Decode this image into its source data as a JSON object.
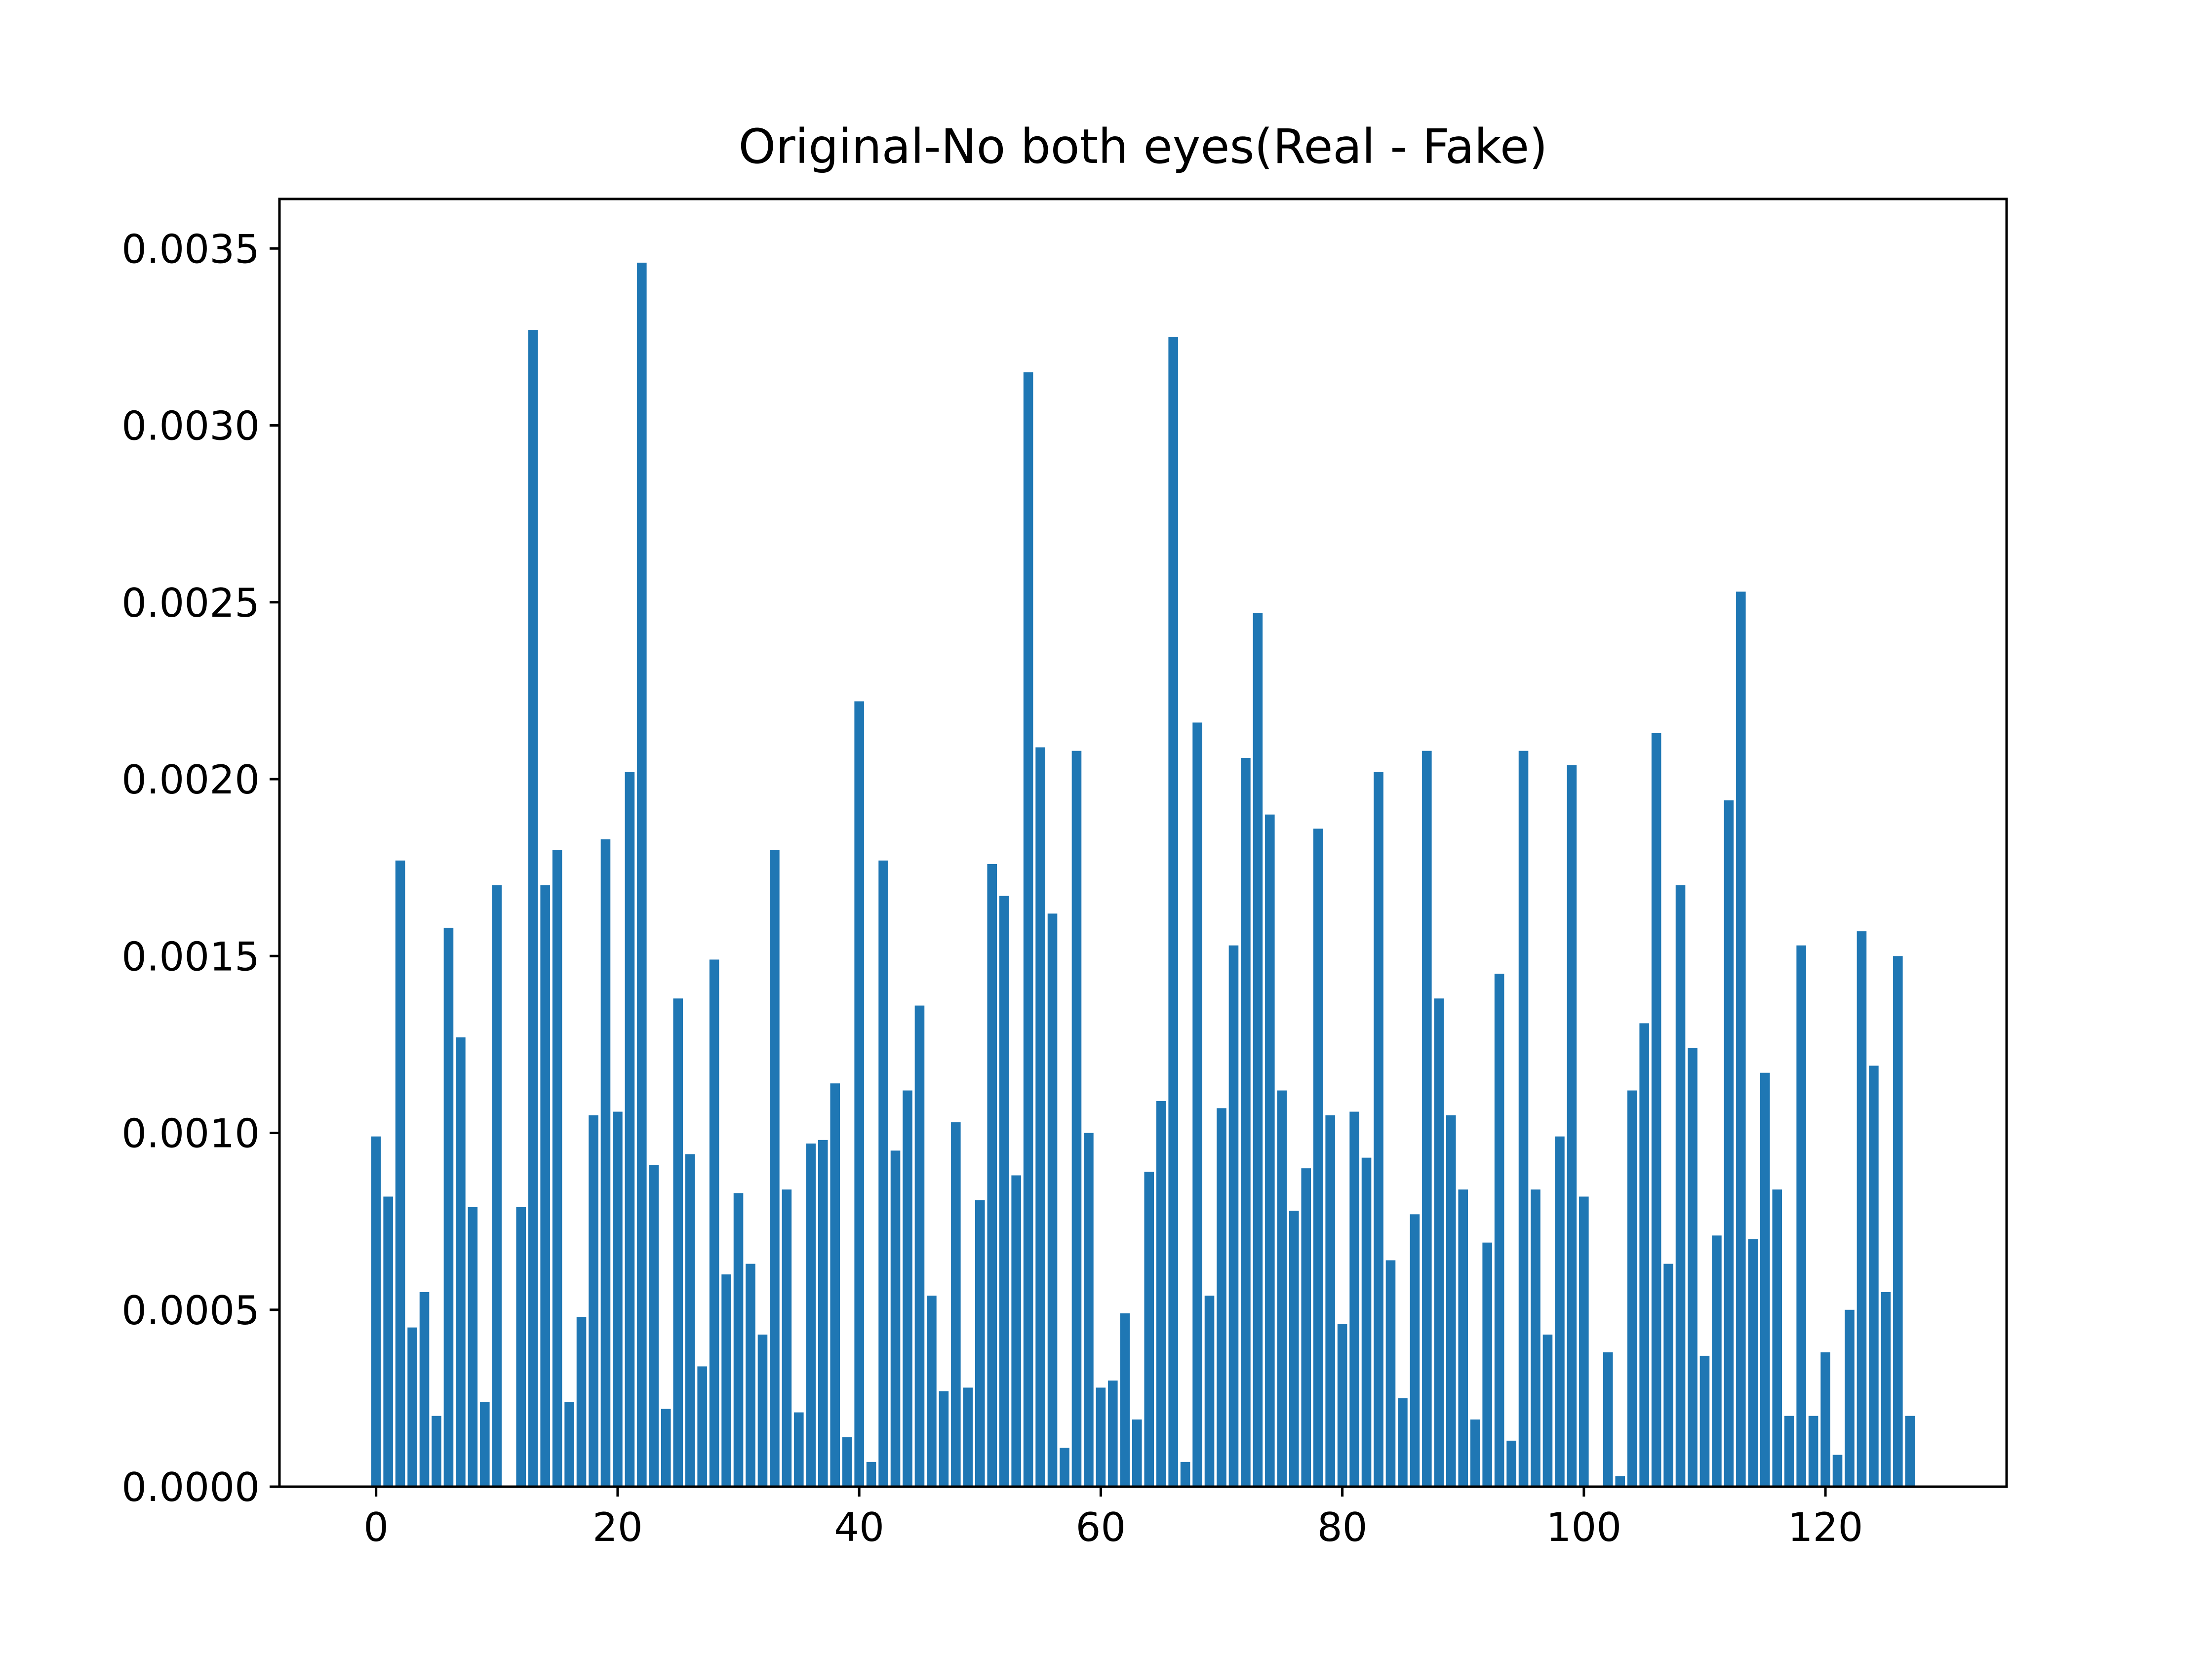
{
  "chart_data": {
    "type": "bar",
    "title": "Original-No both eyes(Real - Fake)",
    "xlabel": "",
    "ylabel": "",
    "x": [
      0,
      1,
      2,
      3,
      4,
      5,
      6,
      7,
      8,
      9,
      10,
      11,
      12,
      13,
      14,
      15,
      16,
      17,
      18,
      19,
      20,
      21,
      22,
      23,
      24,
      25,
      26,
      27,
      28,
      29,
      30,
      31,
      32,
      33,
      34,
      35,
      36,
      37,
      38,
      39,
      40,
      41,
      42,
      43,
      44,
      45,
      46,
      47,
      48,
      49,
      50,
      51,
      52,
      53,
      54,
      55,
      56,
      57,
      58,
      59,
      60,
      61,
      62,
      63,
      64,
      65,
      66,
      67,
      68,
      69,
      70,
      71,
      72,
      73,
      74,
      75,
      76,
      77,
      78,
      79,
      80,
      81,
      82,
      83,
      84,
      85,
      86,
      87,
      88,
      89,
      90,
      91,
      92,
      93,
      94,
      95,
      96,
      97,
      98,
      99,
      100,
      101,
      102,
      103,
      104,
      105,
      106,
      107,
      108,
      109,
      110,
      111,
      112,
      113,
      114,
      115,
      116,
      117,
      118,
      119,
      120,
      121,
      122,
      123,
      124,
      125,
      126,
      127
    ],
    "values": [
      0.00099,
      0.00082,
      0.00177,
      0.00045,
      0.00055,
      0.0002,
      0.00158,
      0.00127,
      0.00079,
      0.00024,
      0.0017,
      0.0,
      0.00079,
      0.00327,
      0.0017,
      0.0018,
      0.00024,
      0.00048,
      0.00105,
      0.00183,
      0.00106,
      0.00202,
      0.00346,
      0.00091,
      0.00022,
      0.00138,
      0.00094,
      0.00034,
      0.00149,
      0.0006,
      0.00083,
      0.00063,
      0.00043,
      0.0018,
      0.00084,
      0.00021,
      0.00097,
      0.00098,
      0.00114,
      0.00014,
      0.00222,
      7e-05,
      0.00177,
      0.00095,
      0.00112,
      0.00136,
      0.00054,
      0.00027,
      0.00103,
      0.00028,
      0.00081,
      0.00176,
      0.00167,
      0.00088,
      0.00315,
      0.00209,
      0.00162,
      0.00011,
      0.00208,
      0.001,
      0.00028,
      0.0003,
      0.00049,
      0.00019,
      0.00089,
      0.00109,
      0.00325,
      7e-05,
      0.00216,
      0.00054,
      0.00107,
      0.00153,
      0.00206,
      0.00247,
      0.0019,
      0.00112,
      0.00078,
      0.0009,
      0.00186,
      0.00105,
      0.00046,
      0.00106,
      0.00093,
      0.00202,
      0.00064,
      0.00025,
      0.00077,
      0.00208,
      0.00138,
      0.00105,
      0.00084,
      0.00019,
      0.00069,
      0.00145,
      0.00013,
      0.00208,
      0.00084,
      0.00043,
      0.00099,
      0.00204,
      0.00082,
      0.0,
      0.00038,
      3e-05,
      0.00112,
      0.00131,
      0.00213,
      0.00063,
      0.0017,
      0.00124,
      0.00037,
      0.00071,
      0.00194,
      0.00253,
      0.0007,
      0.00117,
      0.00084,
      0.0002,
      0.00153,
      0.0002,
      0.00038,
      9e-05,
      0.0005,
      0.00157,
      0.00119,
      0.00055,
      0.0015,
      0.0002
    ],
    "xlim": [
      -8,
      135
    ],
    "ylim": [
      0,
      0.00364
    ],
    "xticks": [
      0,
      20,
      40,
      60,
      80,
      100,
      120
    ],
    "xtick_labels": [
      "0",
      "20",
      "40",
      "60",
      "80",
      "100",
      "120"
    ],
    "yticks": [
      0,
      0.0005,
      0.001,
      0.0015,
      0.002,
      0.0025,
      0.003,
      0.0035
    ],
    "ytick_labels": [
      "0.0000",
      "0.0005",
      "0.0010",
      "0.0015",
      "0.0020",
      "0.0025",
      "0.0030",
      "0.0035"
    ],
    "bar_color": "#1f77b4",
    "grid": false,
    "legend": "none"
  }
}
